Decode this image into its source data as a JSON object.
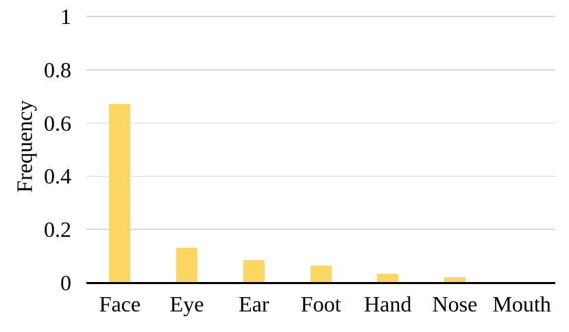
{
  "chart_data": {
    "type": "bar",
    "categories": [
      "Face",
      "Eye",
      "Ear",
      "Foot",
      "Hand",
      "Nose",
      "Mouth"
    ],
    "values": [
      0.67,
      0.13,
      0.085,
      0.063,
      0.033,
      0.02,
      0
    ],
    "ylabel": "Frequency",
    "ylim": [
      0,
      1
    ],
    "yticks": [
      0,
      0.2,
      0.4,
      0.6,
      0.8,
      1
    ],
    "ytick_labels": [
      "0",
      "0.2",
      "0.4",
      "0.6",
      "0.8",
      "1"
    ],
    "grid": true,
    "legend": false,
    "bar_color": "#FDD663",
    "gridline_color": "#D9D9D9",
    "axis_color": "#000000",
    "text_color": "#000000",
    "background": "#FFFFFF"
  }
}
